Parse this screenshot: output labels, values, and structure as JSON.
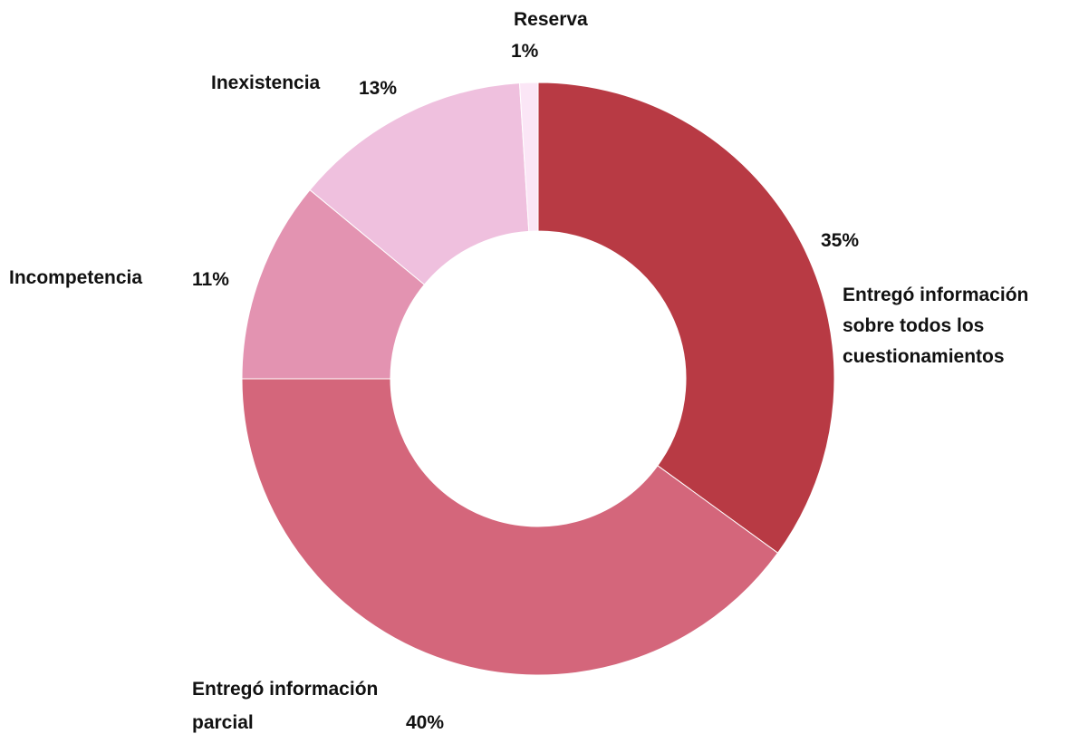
{
  "chart_data": {
    "type": "pie",
    "donut": true,
    "start_angle_deg": 0,
    "direction": "clockwise",
    "slices": [
      {
        "label_lines": [
          "Entregó información",
          "sobre todos los",
          "cuestionamientos"
        ],
        "value": 35,
        "value_label": "35%",
        "color": "#b83a44"
      },
      {
        "label_lines": [
          "Entregó información",
          "parcial"
        ],
        "value": 40,
        "value_label": "40%",
        "color": "#d4667b"
      },
      {
        "label_lines": [
          "Incompetencia"
        ],
        "value": 11,
        "value_label": "11%",
        "color": "#e393b1"
      },
      {
        "label_lines": [
          "Inexistencia"
        ],
        "value": 13,
        "value_label": "13%",
        "color": "#efc0de"
      },
      {
        "label_lines": [
          "Reserva"
        ],
        "value": 1,
        "value_label": "1%",
        "color": "#fbe6f6"
      }
    ]
  }
}
